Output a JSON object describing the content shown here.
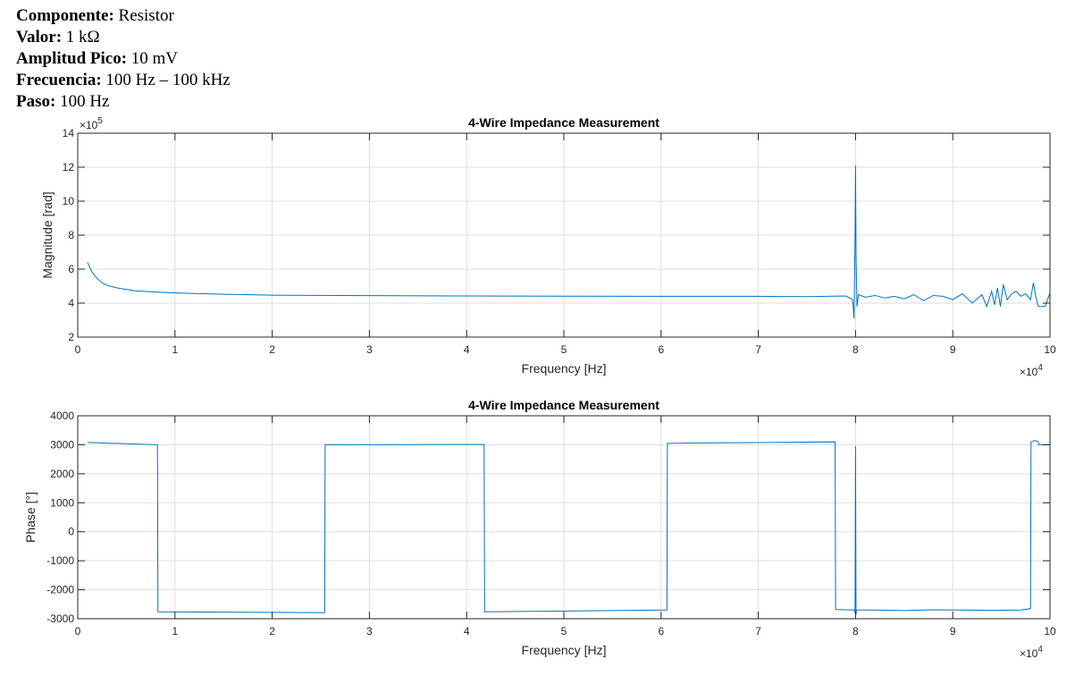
{
  "header": {
    "rows": [
      {
        "label": "Componente:",
        "value": " Resistor"
      },
      {
        "label": "Valor:",
        "value": " 1 kΩ"
      },
      {
        "label": "Amplitud Pico:",
        "value": " 10 mV"
      },
      {
        "label": "Frecuencia:",
        "value": " 100 Hz – 100 kHz"
      },
      {
        "label": "Paso:",
        "value": " 100 Hz"
      }
    ]
  },
  "colors": {
    "line": "#0072BD",
    "grid": "#DFDFDF",
    "axis": "#262626"
  },
  "chart_data": [
    {
      "type": "line",
      "title": "4-Wire Impedance Measurement",
      "xlabel": "Frequency [Hz]",
      "ylabel": "Magnitude [rad]",
      "xlim": [
        0,
        100000
      ],
      "ylim": [
        200000,
        1400000
      ],
      "x_ticks": [
        0,
        10000,
        20000,
        30000,
        40000,
        50000,
        60000,
        70000,
        80000,
        90000,
        100000
      ],
      "x_tick_labels": [
        "0",
        "1",
        "2",
        "3",
        "4",
        "5",
        "6",
        "7",
        "8",
        "9",
        "10"
      ],
      "x_exponent_label": "×10",
      "x_exponent": "4",
      "y_ticks": [
        200000,
        400000,
        600000,
        800000,
        1000000,
        1200000,
        1400000
      ],
      "y_tick_labels": [
        "2",
        "4",
        "6",
        "8",
        "10",
        "12",
        "14"
      ],
      "y_exponent_label": "×10",
      "y_exponent": "5",
      "grid": true,
      "series": [
        {
          "x": [
            1000,
            1500,
            2000,
            2500,
            3000,
            4000,
            5000,
            6000,
            8000,
            10000,
            15000,
            20000,
            30000,
            40000,
            50000,
            60000,
            70000,
            75000,
            79000,
            79700,
            79850,
            79950,
            80000,
            80050,
            80150,
            80300,
            81000,
            82000,
            83000,
            84000,
            85000,
            86000,
            87000,
            88000,
            89000,
            90000,
            91000,
            92000,
            93000,
            93500,
            94000,
            94300,
            94600,
            94900,
            95200,
            95600,
            96000,
            96500,
            97000,
            97500,
            98000,
            98300,
            98500,
            98800,
            99000,
            99500,
            100000
          ],
          "y": [
            640000,
            580000,
            545000,
            520000,
            505000,
            490000,
            480000,
            472000,
            465000,
            460000,
            452000,
            447000,
            444000,
            442000,
            441000,
            440000,
            440000,
            438000,
            442000,
            420000,
            310000,
            800000,
            1210000,
            700000,
            380000,
            450000,
            435000,
            445000,
            430000,
            440000,
            425000,
            450000,
            415000,
            445000,
            440000,
            420000,
            455000,
            400000,
            450000,
            380000,
            470000,
            390000,
            490000,
            380000,
            510000,
            420000,
            450000,
            470000,
            440000,
            455000,
            420000,
            520000,
            450000,
            380000,
            380000,
            380000,
            460000
          ]
        }
      ]
    },
    {
      "type": "line",
      "title": "4-Wire Impedance Measurement",
      "xlabel": "Frequency [Hz]",
      "ylabel": "Phase [°]",
      "xlim": [
        0,
        100000
      ],
      "ylim": [
        -3000,
        4000
      ],
      "x_ticks": [
        0,
        10000,
        20000,
        30000,
        40000,
        50000,
        60000,
        70000,
        80000,
        90000,
        100000
      ],
      "x_tick_labels": [
        "0",
        "1",
        "2",
        "3",
        "4",
        "5",
        "6",
        "7",
        "8",
        "9",
        "10"
      ],
      "x_exponent_label": "×10",
      "x_exponent": "4",
      "y_ticks": [
        -3000,
        -2000,
        -1000,
        0,
        1000,
        2000,
        3000,
        4000
      ],
      "y_tick_labels": [
        "-3000",
        "-2000",
        "-1000",
        "0",
        "1000",
        "2000",
        "3000",
        "4000"
      ],
      "grid": true,
      "series": [
        {
          "x": [
            1000,
            8200,
            8250,
            25400,
            25450,
            41800,
            41850,
            60600,
            60650,
            77900,
            77950,
            79900,
            79950,
            80000,
            80050,
            80100,
            82000,
            85000,
            88000,
            91000,
            94000,
            97000,
            98000,
            98050,
            98500,
            98800,
            98850,
            100000
          ],
          "y": [
            3080,
            3000,
            -2760,
            -2790,
            3000,
            3010,
            -2760,
            -2700,
            3050,
            3100,
            -2680,
            -2700,
            -2800,
            2950,
            -2850,
            -2700,
            -2700,
            -2720,
            -2690,
            -2700,
            -2710,
            -2700,
            -2650,
            3100,
            3150,
            3100,
            3000,
            3000
          ]
        }
      ]
    }
  ]
}
